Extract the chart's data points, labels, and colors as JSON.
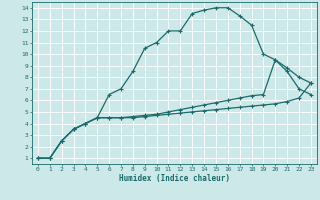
{
  "xlabel": "Humidex (Indice chaleur)",
  "xlim": [
    -0.5,
    23.5
  ],
  "ylim": [
    0.5,
    14.5
  ],
  "xticks": [
    0,
    1,
    2,
    3,
    4,
    5,
    6,
    7,
    8,
    9,
    10,
    11,
    12,
    13,
    14,
    15,
    16,
    17,
    18,
    19,
    20,
    21,
    22,
    23
  ],
  "yticks": [
    1,
    2,
    3,
    4,
    5,
    6,
    7,
    8,
    9,
    10,
    11,
    12,
    13,
    14
  ],
  "bg_color": "#cde8e8",
  "grid_color": "#b8d8d8",
  "line_color": "#1a6b6b",
  "line1_x": [
    0,
    1,
    2,
    3,
    4,
    5,
    6,
    7,
    8,
    9,
    10,
    11,
    12,
    13,
    14,
    15,
    16,
    17,
    18,
    19,
    20,
    21,
    22,
    23
  ],
  "line1_y": [
    1,
    1,
    2.5,
    3.5,
    4,
    4.5,
    6.5,
    7.0,
    8.5,
    10.5,
    11.0,
    12.0,
    12.0,
    13.5,
    13.8,
    14.0,
    14.0,
    13.3,
    12.5,
    10.0,
    9.5,
    8.5,
    7.0,
    6.5
  ],
  "line2_x": [
    0,
    1,
    2,
    3,
    4,
    5,
    6,
    7,
    8,
    9,
    10,
    11,
    12,
    13,
    14,
    15,
    16,
    17,
    18,
    19,
    20,
    21,
    22,
    23
  ],
  "line2_y": [
    1,
    1,
    2.5,
    3.5,
    4.0,
    4.5,
    4.5,
    4.5,
    4.6,
    4.7,
    4.8,
    5.0,
    5.2,
    5.4,
    5.6,
    5.8,
    6.0,
    6.2,
    6.4,
    6.5,
    9.5,
    8.8,
    8.0,
    7.5
  ],
  "line3_x": [
    0,
    1,
    2,
    3,
    4,
    5,
    6,
    7,
    8,
    9,
    10,
    11,
    12,
    13,
    14,
    15,
    16,
    17,
    18,
    19,
    20,
    21,
    22,
    23
  ],
  "line3_y": [
    1,
    1,
    2.5,
    3.5,
    4.0,
    4.5,
    4.5,
    4.5,
    4.5,
    4.6,
    4.7,
    4.8,
    4.9,
    5.0,
    5.1,
    5.2,
    5.3,
    5.4,
    5.5,
    5.6,
    5.7,
    5.9,
    6.2,
    7.5
  ]
}
